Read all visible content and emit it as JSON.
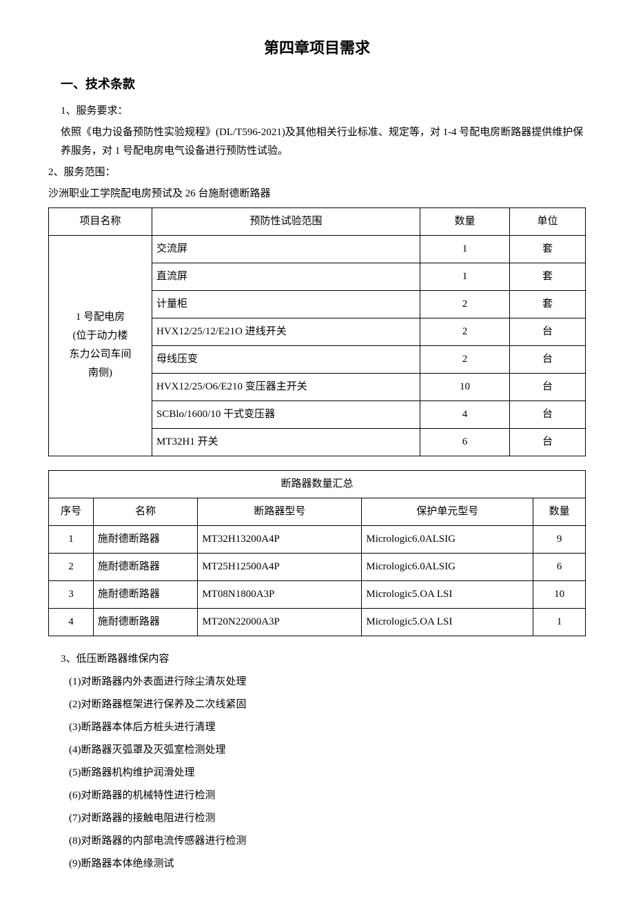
{
  "chapter_title": "第四章项目需求",
  "section1_title": "一、技术条款",
  "s1_p1": "1、服务要求：",
  "s1_p2": "依照《电力设备预防性实验规程》(DL/T596-2021)及其他相关行业标准、规定等，对 1-4 号配电房断路器提供维护保养服务，对 1 号配电房电气设备进行预防性试验。",
  "s1_p3": "2、服务范围：",
  "s1_p4": "沙洲职业工学院配电房预试及 26 台施耐德断路器",
  "table1": {
    "headers": {
      "name": "项目名称",
      "scope": "预防性试验范围",
      "qty": "数量",
      "unit": "单位"
    },
    "rowlabel_lines": [
      "1 号配电房",
      "",
      "(位于动力楼",
      "东力公司车间",
      "南侧)"
    ],
    "rows": [
      {
        "scope": "交流屏",
        "qty": "1",
        "unit": "套"
      },
      {
        "scope": "直流屏",
        "qty": "1",
        "unit": "套"
      },
      {
        "scope": "计量柜",
        "qty": "2",
        "unit": "套"
      },
      {
        "scope": "HVX12/25/12/E21O 进线开关",
        "qty": "2",
        "unit": "台"
      },
      {
        "scope": "母线压变",
        "qty": "2",
        "unit": "台"
      },
      {
        "scope": "HVX12/25/O6/E210 变压器主开关",
        "qty": "10",
        "unit": "台"
      },
      {
        "scope": "SCBlo/1600/10 干式变压器",
        "qty": "4",
        "unit": "台"
      },
      {
        "scope": "MT32H1 开关",
        "qty": "6",
        "unit": "台"
      }
    ]
  },
  "table2": {
    "caption": "断路器数量汇总",
    "headers": {
      "idx": "序号",
      "name": "名称",
      "model": "断路器型号",
      "protect": "保护单元型号",
      "qty": "数量"
    },
    "rows": [
      {
        "idx": "1",
        "name": "施耐德断路器",
        "model": "MT32H13200A4P",
        "protect": "Micrologic6.0ALSIG",
        "qty": "9"
      },
      {
        "idx": "2",
        "name": "施耐德断路器",
        "model": "MT25H12500A4P",
        "protect": "Micrologic6.0ALSIG",
        "qty": "6"
      },
      {
        "idx": "3",
        "name": "施耐德断路器",
        "model": "MT08N1800A3P",
        "protect": "Micrologic5.OA    LSI",
        "qty": "10"
      },
      {
        "idx": "4",
        "name": "施耐德断路器",
        "model": "MT20N22000A3P",
        "protect": "Micrologic5.OA    LSI",
        "qty": "1"
      }
    ]
  },
  "s3_title": "3、低压断路器维保内容",
  "s3_items": [
    "(1)对断路器内外表面进行除尘清灰处理",
    "(2)对断路器框架进行保养及二次线紧固",
    "(3)断路器本体后方桩头进行清理",
    "(4)断路器灭弧罩及灭弧室检测处理",
    "(5)断路器机构维护润滑处理",
    "(6)对断路器的机械特性进行检测",
    "(7)对断路器的接触电阻进行检测",
    "(8)对断路器的内部电流传感器进行检测",
    "(9)断路器本体绝缘测试"
  ]
}
